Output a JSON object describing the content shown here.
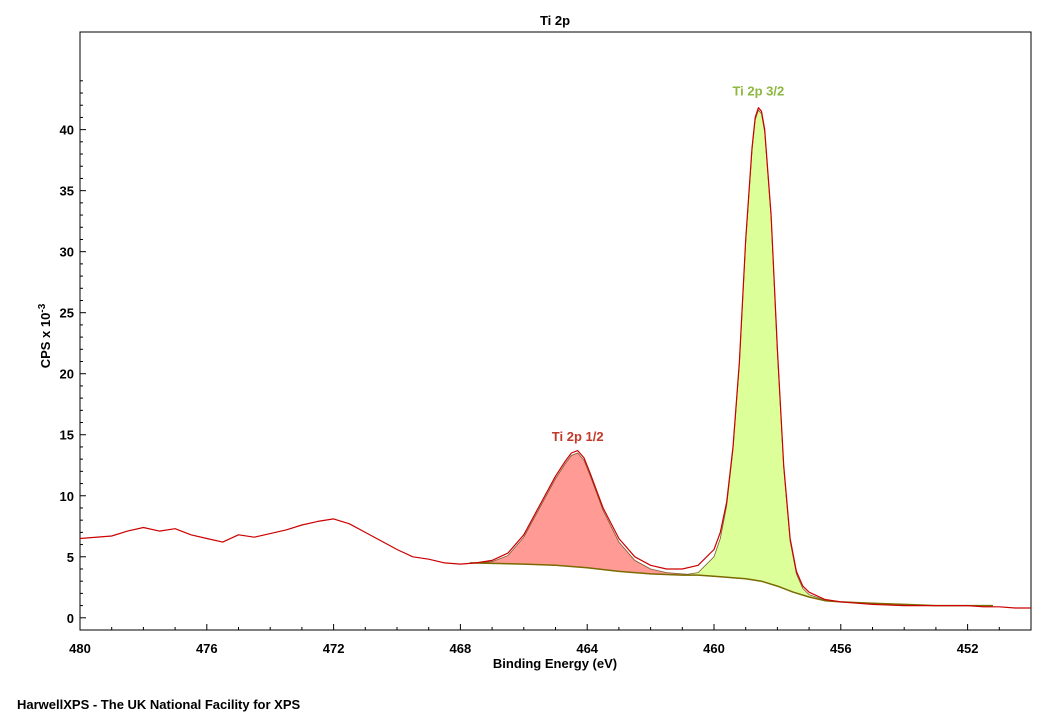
{
  "footer": "HarwellXPS - The UK National Facility for XPS",
  "chart_data": {
    "type": "line",
    "title": "Ti 2p",
    "xlabel": "Binding Energy (eV)",
    "ylabel_base": "CPS x 10",
    "ylabel_exp": "-3",
    "x_reversed": true,
    "xlim": [
      480,
      450
    ],
    "ylim": [
      -1,
      48
    ],
    "x_ticks": [
      480,
      476,
      472,
      468,
      464,
      460,
      456,
      452
    ],
    "y_ticks": [
      0,
      5,
      10,
      15,
      20,
      25,
      30,
      35,
      40
    ],
    "grid": false,
    "colors": {
      "envelope": "#cc0000",
      "raw": "#888888",
      "background": "#7a6a00",
      "ti_2p_1_2_fill": "#ff9a94",
      "ti_2p_1_2_label": "#c0392b",
      "ti_2p_3_2_fill": "#dcff9a",
      "ti_2p_3_2_label": "#8db840"
    },
    "series": [
      {
        "name": "envelope",
        "x": [
          480,
          479,
          478.5,
          478,
          477.5,
          477,
          476.5,
          476,
          475.5,
          475,
          474.5,
          474,
          473.5,
          473,
          472.5,
          472,
          471.5,
          471,
          470.5,
          470,
          469.5,
          469,
          468.5,
          468,
          467.5,
          467,
          466.5,
          466,
          465.5,
          465,
          464.7,
          464.5,
          464.3,
          464.1,
          463.9,
          463.5,
          463,
          462.5,
          462,
          461.5,
          461,
          460.5,
          460,
          459.8,
          459.6,
          459.4,
          459.2,
          459,
          458.8,
          458.7,
          458.6,
          458.5,
          458.4,
          458.2,
          458,
          457.8,
          457.6,
          457.4,
          457.2,
          457,
          456.5,
          456,
          455.5,
          455,
          454,
          453,
          452,
          451.5,
          451,
          450.5,
          450
        ],
        "y": [
          6.5,
          6.7,
          7.1,
          7.4,
          7.1,
          7.3,
          6.8,
          6.5,
          6.2,
          6.8,
          6.6,
          6.9,
          7.2,
          7.6,
          7.9,
          8.1,
          7.7,
          7.0,
          6.3,
          5.6,
          5.0,
          4.8,
          4.5,
          4.4,
          4.5,
          4.7,
          5.3,
          6.8,
          9.2,
          11.6,
          12.8,
          13.5,
          13.7,
          13.1,
          11.8,
          9.0,
          6.5,
          5.0,
          4.3,
          4.0,
          4.0,
          4.3,
          5.6,
          7.0,
          9.5,
          14.0,
          21.0,
          31.0,
          38.5,
          41.0,
          41.8,
          41.5,
          40.0,
          33.0,
          22.0,
          12.5,
          6.5,
          3.8,
          2.6,
          2.1,
          1.5,
          1.3,
          1.2,
          1.1,
          1.0,
          1.0,
          1.0,
          0.9,
          0.9,
          0.8,
          0.8
        ]
      },
      {
        "name": "background",
        "x": [
          467.7,
          466,
          465,
          464,
          463,
          462,
          461,
          460.5,
          460,
          459.5,
          459,
          458.5,
          458,
          457.5,
          457,
          456.5,
          456,
          455,
          454,
          453,
          452,
          451.2
        ],
        "y": [
          4.5,
          4.4,
          4.3,
          4.1,
          3.8,
          3.6,
          3.5,
          3.5,
          3.4,
          3.3,
          3.2,
          3.0,
          2.6,
          2.1,
          1.7,
          1.4,
          1.3,
          1.2,
          1.1,
          1.0,
          1.0,
          1.0
        ]
      },
      {
        "name": "Ti 2p 1/2",
        "x": [
          467.7,
          467,
          466.5,
          466,
          465.5,
          465,
          464.7,
          464.5,
          464.3,
          464.1,
          463.9,
          463.5,
          463,
          462.5,
          462,
          461.5,
          461,
          460.5
        ],
        "y": [
          4.5,
          4.6,
          5.1,
          6.6,
          9.0,
          11.4,
          12.6,
          13.3,
          13.5,
          12.9,
          11.6,
          8.8,
          6.2,
          4.7,
          4.0,
          3.7,
          3.6,
          3.5
        ]
      },
      {
        "name": "Ti 2p 3/2",
        "x": [
          462,
          461,
          460.5,
          460,
          459.8,
          459.6,
          459.4,
          459.2,
          459,
          458.8,
          458.7,
          458.6,
          458.5,
          458.4,
          458.2,
          458,
          457.8,
          457.6,
          457.4,
          457.2,
          457,
          456.5,
          456,
          455,
          454,
          453,
          452,
          451.2
        ],
        "y": [
          3.6,
          3.5,
          3.7,
          5.0,
          6.5,
          9.2,
          13.8,
          20.8,
          30.8,
          38.3,
          40.8,
          41.6,
          41.3,
          39.8,
          32.8,
          21.8,
          12.3,
          6.3,
          3.6,
          2.4,
          1.9,
          1.45,
          1.3,
          1.2,
          1.1,
          1.0,
          1.0,
          1.0
        ]
      }
    ],
    "annotations": [
      {
        "text": "Ti 2p 1/2",
        "x": 464.3,
        "y": 14.5
      },
      {
        "text": "Ti 2p 3/2",
        "x": 458.6,
        "y": 42.8
      }
    ]
  }
}
